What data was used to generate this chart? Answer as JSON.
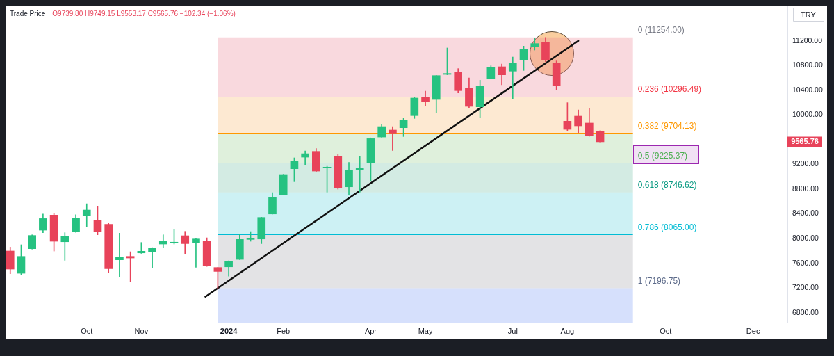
{
  "chart_data": {
    "type": "candlestick",
    "title": "Trade Price",
    "subtitle": "O9739.80 H9749.15 L9553.17 C9565.76 −102.34 (−1.06%)",
    "ylabel": "TRY",
    "x": [
      "2023-08-14",
      "2023-08-21",
      "2023-08-28",
      "2023-09-04",
      "2023-09-11",
      "2023-09-18",
      "2023-09-25",
      "2023-10-02",
      "2023-10-09",
      "2023-10-16",
      "2023-10-23",
      "2023-10-30",
      "2023-11-06",
      "2023-11-13",
      "2023-11-20",
      "2023-11-27",
      "2023-12-04",
      "2023-12-11",
      "2023-12-18",
      "2023-12-25",
      "2024-01-01",
      "2024-01-08",
      "2024-01-15",
      "2024-01-22",
      "2024-01-29",
      "2024-02-05",
      "2024-02-12",
      "2024-02-19",
      "2024-02-26",
      "2024-03-04",
      "2024-03-11",
      "2024-03-18",
      "2024-03-25",
      "2024-04-01",
      "2024-04-08",
      "2024-04-15",
      "2024-04-22",
      "2024-04-29",
      "2024-05-06",
      "2024-05-13",
      "2024-05-20",
      "2024-05-27",
      "2024-06-03",
      "2024-06-10",
      "2024-06-17",
      "2024-06-24",
      "2024-07-01",
      "2024-07-08",
      "2024-07-15",
      "2024-07-22",
      "2024-07-29",
      "2024-08-05",
      "2024-08-12",
      "2024-08-19",
      "2024-08-26"
    ],
    "ohlc": [
      [
        7799,
        7862,
        7431,
        7506
      ],
      [
        7438,
        7900,
        7412,
        7712
      ],
      [
        7836,
        8060,
        7830,
        8050
      ],
      [
        8136,
        8398,
        8095,
        8323
      ],
      [
        8380,
        8406,
        7798,
        7956
      ],
      [
        7948,
        8095,
        7648,
        8038
      ],
      [
        8106,
        8387,
        8100,
        8331
      ],
      [
        8376,
        8563,
        8188,
        8462
      ],
      [
        8301,
        8526,
        8061,
        8113
      ],
      [
        8230,
        8248,
        7450,
        7513
      ],
      [
        7656,
        8087,
        7386,
        7705
      ],
      [
        7712,
        7787,
        7300,
        7686
      ],
      [
        7768,
        7937,
        7760,
        7795
      ],
      [
        7783,
        7855,
        7525,
        7851
      ],
      [
        7911,
        8061,
        7855,
        7956
      ],
      [
        7930,
        8151,
        7911,
        7942
      ],
      [
        8046,
        8117,
        7757,
        7918
      ],
      [
        7926,
        7998,
        7536,
        7993
      ],
      [
        7956,
        8012,
        7550,
        7555
      ],
      [
        7532,
        7535,
        7197,
        7468
      ],
      [
        7543,
        7640,
        7393,
        7630
      ],
      [
        7663,
        8076,
        7660,
        7986
      ],
      [
        7986,
        8113,
        7956,
        8001
      ],
      [
        7993,
        8345,
        7918,
        8342
      ],
      [
        8398,
        8743,
        8395,
        8661
      ],
      [
        8713,
        9040,
        8706,
        9036
      ],
      [
        9130,
        9306,
        8920,
        9246
      ],
      [
        9317,
        9418,
        9193,
        9373
      ],
      [
        9411,
        9456,
        9081,
        9092
      ],
      [
        9141,
        9170,
        8751,
        9156
      ],
      [
        9336,
        9362,
        8800,
        8818
      ],
      [
        8837,
        9231,
        8706,
        9111
      ],
      [
        9118,
        9336,
        8751,
        9141
      ],
      [
        9231,
        9630,
        8931,
        9617
      ],
      [
        9643,
        9850,
        9640,
        9812
      ],
      [
        9756,
        9812,
        9426,
        9696
      ],
      [
        9794,
        9951,
        9651,
        9917
      ],
      [
        9989,
        10288,
        9944,
        10274
      ],
      [
        10281,
        10386,
        10150,
        10214
      ],
      [
        10251,
        10640,
        10037,
        10637
      ],
      [
        10656,
        11084,
        10650,
        10671
      ],
      [
        10694,
        10750,
        10356,
        10394
      ],
      [
        10439,
        10600,
        10112,
        10139
      ],
      [
        10131,
        10562,
        9962,
        10461
      ],
      [
        10589,
        10795,
        10585,
        10776
      ],
      [
        10780,
        10825,
        10487,
        10649
      ],
      [
        10709,
        10937,
        10262,
        10844
      ],
      [
        10896,
        11114,
        10720,
        11061
      ],
      [
        11106,
        11249,
        11050,
        11155
      ],
      [
        11181,
        11254,
        10862,
        10889
      ],
      [
        10833,
        10874,
        10412,
        10469
      ],
      [
        9899,
        10199,
        9748,
        9767
      ],
      [
        9981,
        10082,
        9711,
        9824
      ],
      [
        9869,
        10112,
        9655,
        9666
      ],
      [
        9739.8,
        9749.15,
        9553.17,
        9565.76
      ]
    ],
    "colors": [
      "#e8435a",
      "#26c281",
      "#26c281",
      "#26c281",
      "#e8435a",
      "#26c281",
      "#26c281",
      "#26c281",
      "#e8435a",
      "#e8435a",
      "#26c281",
      "#e8435a",
      "#26c281",
      "#26c281",
      "#26c281",
      "#26c281",
      "#e8435a",
      "#26c281",
      "#e8435a",
      "#e8435a",
      "#26c281",
      "#26c281",
      "#26c281",
      "#26c281",
      "#26c281",
      "#26c281",
      "#26c281",
      "#26c281",
      "#e8435a",
      "#26c281",
      "#e8435a",
      "#26c281",
      "#26c281",
      "#26c281",
      "#26c281",
      "#e8435a",
      "#26c281",
      "#26c281",
      "#e8435a",
      "#26c281",
      "#26c281",
      "#e8435a",
      "#e8435a",
      "#26c281",
      "#26c281",
      "#e8435a",
      "#26c281",
      "#26c281",
      "#26c281",
      "#e8435a",
      "#e8435a",
      "#e8435a",
      "#e8435a",
      "#e8435a",
      "#e8435a"
    ],
    "series": [
      {
        "type": "line",
        "x": [
          "2023-12-17",
          "2024-08-12"
        ],
        "values": [
          7060,
          11200
        ],
        "color": "#111111"
      }
    ],
    "xlim": [
      "2023-08-11",
      "2024-12-24"
    ],
    "xticks": [
      {
        "value": "2023-10-02",
        "label": "Oct"
      },
      {
        "value": "2023-11-06",
        "label": "Nov"
      },
      {
        "value": "2024-01-01",
        "label": "2024"
      },
      {
        "value": "2024-02-05",
        "label": "Feb"
      },
      {
        "value": "2024-04-01",
        "label": "Apr"
      },
      {
        "value": "2024-05-06",
        "label": "May"
      },
      {
        "value": "2024-07-01",
        "label": "Jul"
      },
      {
        "value": "2024-08-05",
        "label": "Aug"
      },
      {
        "value": "2024-10-07",
        "label": "Oct"
      },
      {
        "value": "2024-12-02",
        "label": "Dec"
      }
    ],
    "ylim": [
      6640,
      11770
    ],
    "yticks": [
      {
        "value": 6800,
        "label": "6800.00"
      },
      {
        "value": 7200,
        "label": "7200.00"
      },
      {
        "value": 7600,
        "label": "7600.00"
      },
      {
        "value": 8000,
        "label": "8000.00"
      },
      {
        "value": 8400,
        "label": "8400.00"
      },
      {
        "value": 8800,
        "label": "8800.00"
      },
      {
        "value": 9200,
        "label": "9200.00"
      },
      {
        "value": 10000,
        "label": "10000.00"
      },
      {
        "value": 10400,
        "label": "10400.00"
      },
      {
        "value": 10800,
        "label": "10800.00"
      },
      {
        "value": 11200,
        "label": "11200.00"
      }
    ],
    "ref_lines": [
      {
        "axis": "y",
        "value": 11254,
        "label": "0 (11254.00)",
        "color": "#787b86"
      },
      {
        "axis": "y",
        "value": 10296.49,
        "label": "0.236 (10296.49)",
        "color": "#f23645"
      },
      {
        "axis": "y",
        "value": 9704.13,
        "label": "0.382 (9704.13)",
        "color": "#ff9800"
      },
      {
        "axis": "y",
        "value": 9225.37,
        "label": "0.5 (9225.37)",
        "color": "#4caf50"
      },
      {
        "axis": "y",
        "value": 8746.62,
        "label": "0.618 (8746.62)",
        "color": "#089981"
      },
      {
        "axis": "y",
        "value": 8065,
        "label": "0.786 (8065.00)",
        "color": "#00bcd4"
      },
      {
        "axis": "y",
        "value": 7196.75,
        "label": "1 (7196.75)",
        "color": "#5d6b8a"
      }
    ],
    "bands": [
      {
        "axis": "y",
        "from": 11254,
        "to": 10296.49,
        "color": "#f9d9de"
      },
      {
        "axis": "y",
        "from": 10296.49,
        "to": 9704.13,
        "color": "#fde9d2"
      },
      {
        "axis": "y",
        "from": 9704.13,
        "to": 9225.37,
        "color": "#dff0dc"
      },
      {
        "axis": "y",
        "from": 9225.37,
        "to": 8746.62,
        "color": "#d3ebe3"
      },
      {
        "axis": "y",
        "from": 8746.62,
        "to": 8065,
        "color": "#cdf1f4"
      },
      {
        "axis": "y",
        "from": 8065,
        "to": 7196.75,
        "color": "#e3e3e5"
      },
      {
        "axis": "y",
        "from": 7196.75,
        "to": 6640,
        "color": "#d6e0fc"
      }
    ],
    "annotations": [
      "9565.76"
    ]
  }
}
